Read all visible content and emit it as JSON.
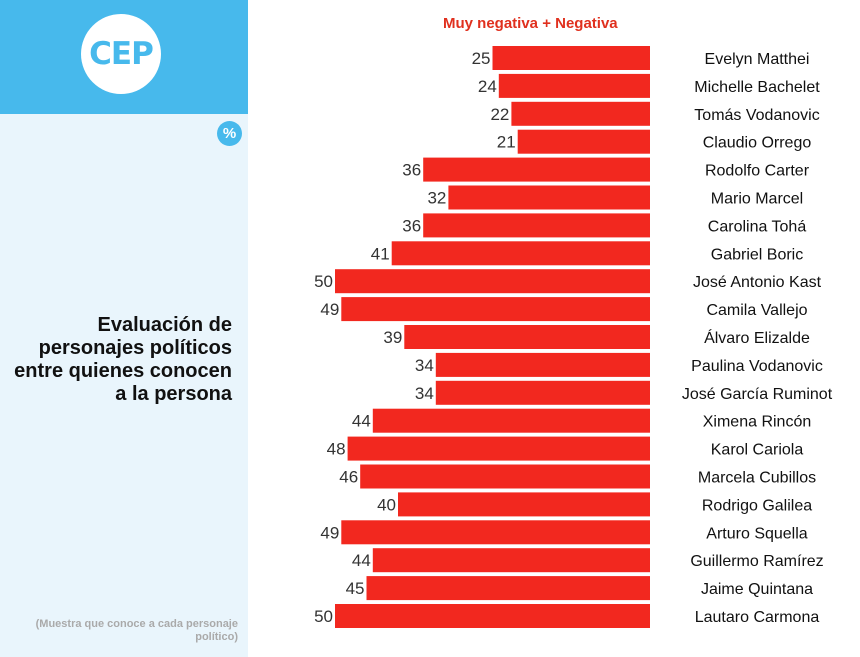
{
  "sidebar": {
    "logo_text": "CEP",
    "unit_badge": "%",
    "title": "Evaluación de personajes políticos entre quienes conocen a la persona",
    "footnote": "(Muestra que conoce a cada personaje político)"
  },
  "colors": {
    "accent": "#47b9ec",
    "bar": "#f2281f",
    "legend": "#e0301e"
  },
  "chart_data": {
    "type": "bar",
    "orientation": "horizontal",
    "legend": "Muy negativa + Negativa",
    "unit": "%",
    "categories": [
      "Evelyn Matthei",
      "Michelle Bachelet",
      "Tomás Vodanovic",
      "Claudio Orrego",
      "Rodolfo Carter",
      "Mario Marcel",
      "Carolina Tohá",
      "Gabriel Boric",
      "José Antonio Kast",
      "Camila Vallejo",
      "Álvaro Elizalde",
      "Paulina Vodanovic",
      "José García Ruminot",
      "Ximena Rincón",
      "Karol Cariola",
      "Marcela Cubillos",
      "Rodrigo Galilea",
      "Arturo Squella",
      "Guillermo Ramírez",
      "Jaime Quintana",
      "Lautaro Carmona"
    ],
    "series": [
      {
        "name": "Muy negativa + Negativa",
        "values": [
          25,
          24,
          22,
          21,
          36,
          32,
          36,
          41,
          50,
          49,
          39,
          34,
          34,
          44,
          48,
          46,
          40,
          49,
          44,
          45,
          50
        ]
      }
    ],
    "xlim": [
      0,
      50
    ],
    "grid": false
  }
}
